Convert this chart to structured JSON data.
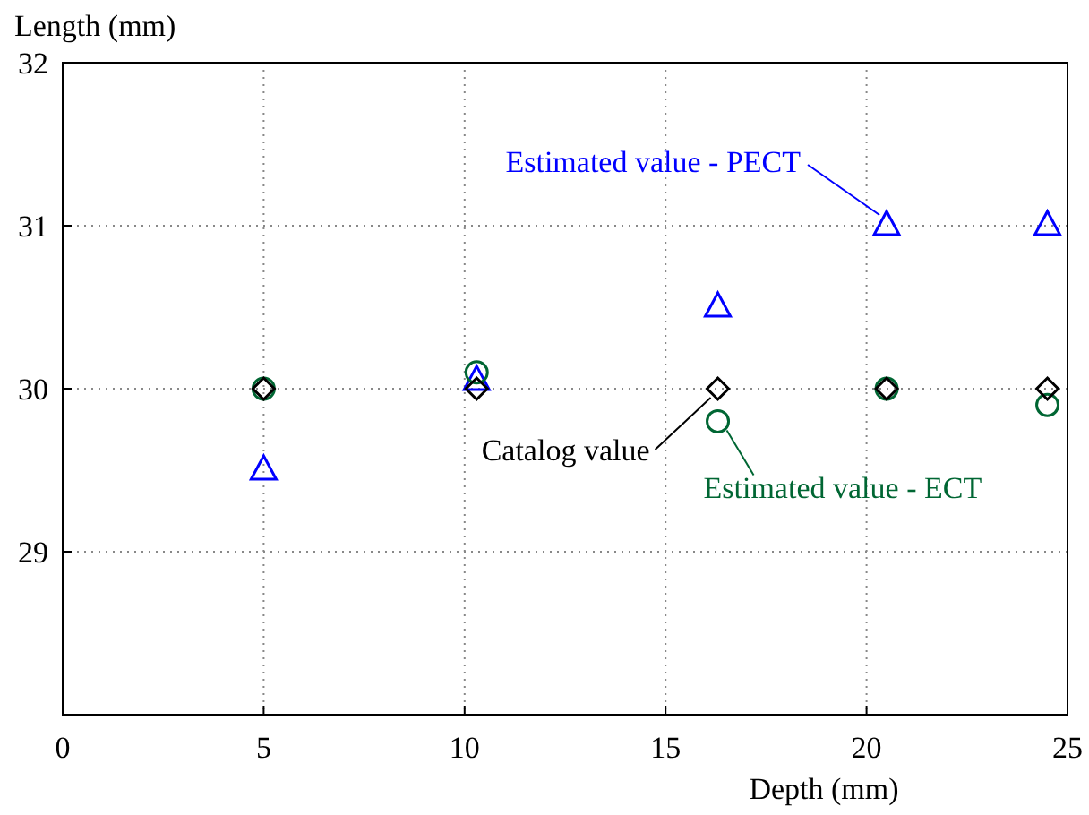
{
  "chart_data": {
    "type": "scatter",
    "xlabel": "Depth (mm)",
    "ylabel": "Length (mm)",
    "x": [
      5,
      10.3,
      16.3,
      20.5,
      24.5
    ],
    "series": [
      {
        "name": "Estimated value - PECT",
        "color": "#0000ff",
        "marker": "triangle",
        "values": [
          29.5,
          30.05,
          30.5,
          31,
          31
        ]
      },
      {
        "name": "Estimated value - ECT",
        "color": "#006633",
        "marker": "circle",
        "values": [
          30,
          30.1,
          29.8,
          30,
          29.9
        ]
      },
      {
        "name": "Catalog value",
        "color": "#000000",
        "marker": "diamond",
        "values": [
          30,
          30,
          30,
          30,
          30
        ]
      }
    ],
    "xlim": [
      0,
      25
    ],
    "xticks": [
      0,
      5,
      10,
      15,
      20,
      25
    ],
    "ylim": [
      28,
      32
    ],
    "yticks": [
      29,
      30,
      31,
      32
    ],
    "grid": true
  }
}
